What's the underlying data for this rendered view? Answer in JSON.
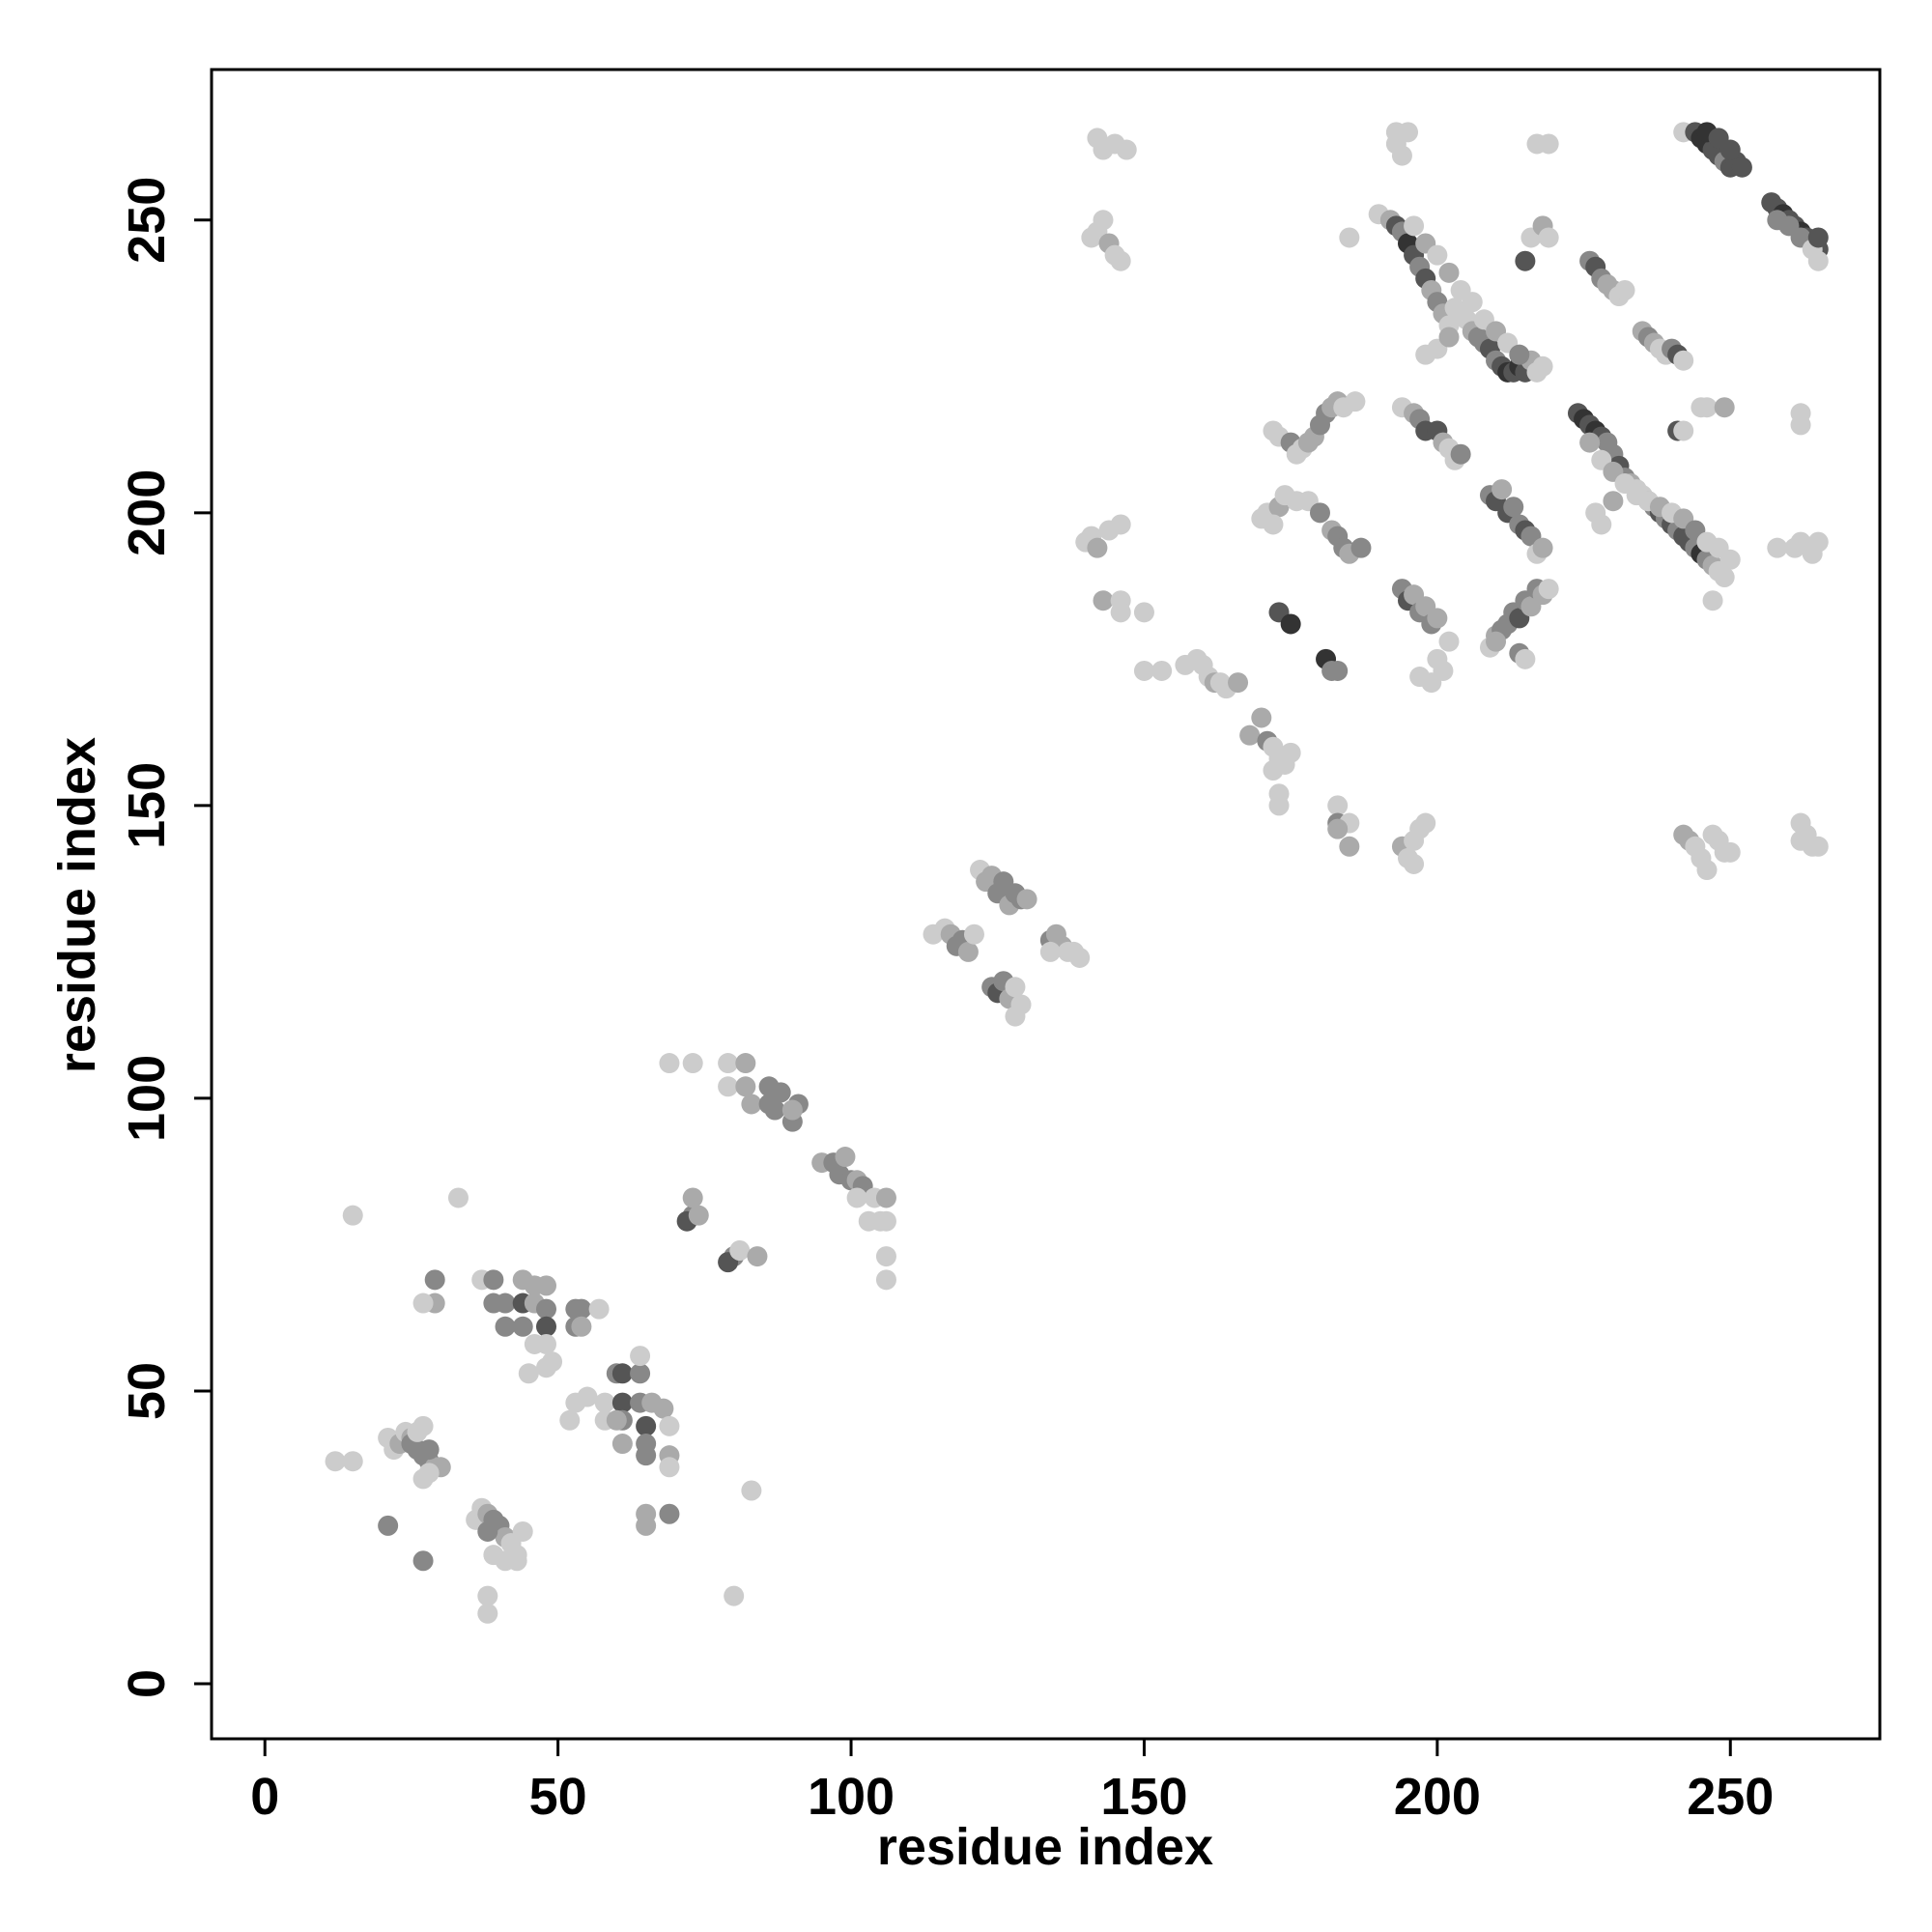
{
  "chart_data": {
    "type": "scatter",
    "xlabel": "residue index",
    "ylabel": "residue index",
    "xlim": [
      -9.1,
      275.5
    ],
    "ylim": [
      -9.4,
      275.7
    ],
    "xticks": [
      0,
      50,
      100,
      150,
      200,
      250
    ],
    "yticks": [
      0,
      50,
      100,
      150,
      200,
      250
    ],
    "x": [
      12,
      15,
      15,
      33,
      21,
      27,
      21,
      22,
      23,
      24,
      25,
      26,
      27,
      28,
      29,
      30,
      28,
      27,
      25,
      26,
      27,
      28,
      36,
      37,
      38,
      39,
      40,
      41,
      42,
      43,
      44,
      39,
      41,
      43,
      38,
      38,
      38,
      37,
      39,
      39,
      41,
      41,
      44,
      44,
      44,
      46,
      46,
      48,
      48,
      48,
      46,
      48,
      45,
      48,
      49,
      53,
      53,
      54,
      54,
      57,
      29,
      29,
      27,
      52,
      53,
      55,
      58,
      60,
      61,
      61,
      61,
      61,
      64,
      64,
      64,
      65,
      65,
      65,
      66,
      68,
      69,
      69,
      69,
      69,
      65,
      65,
      58,
      60,
      83,
      80,
      69,
      73,
      79,
      79,
      82,
      82,
      83,
      86,
      86,
      87,
      88,
      90,
      91,
      90,
      73,
      72,
      74,
      73,
      80,
      79,
      81,
      84,
      95,
      97,
      98,
      99,
      100,
      101,
      102,
      101,
      103,
      104,
      106,
      106,
      105,
      106,
      106,
      114,
      116,
      117,
      118,
      119,
      120,
      121,
      122,
      123,
      124,
      125,
      126,
      127,
      128,
      129,
      130,
      124,
      125,
      126,
      127,
      128,
      129,
      128,
      134,
      135,
      136,
      137,
      138,
      139,
      134,
      141,
      142,
      143,
      144,
      145,
      146,
      142,
      143,
      145,
      147,
      140,
      141,
      142,
      144,
      146,
      143,
      146,
      146,
      150,
      150,
      153,
      157,
      159,
      160,
      161,
      162,
      163,
      164,
      166,
      168,
      170,
      171,
      172,
      173,
      174,
      175,
      173,
      173,
      172,
      170,
      171,
      173,
      174,
      176,
      178,
      172,
      172,
      173,
      175,
      176,
      177,
      178,
      179,
      180,
      181,
      182,
      183,
      184,
      186,
      173,
      175,
      181,
      182,
      183,
      180,
      182,
      183,
      184,
      185,
      187,
      183,
      183,
      185,
      185,
      183,
      185,
      190,
      192,
      193,
      194,
      195,
      196,
      197,
      198,
      199,
      200,
      201,
      202,
      203,
      204,
      205,
      206,
      207,
      208,
      209,
      210,
      211,
      212,
      213,
      214,
      215,
      216,
      217,
      218,
      196,
      198,
      200,
      202,
      204,
      206,
      208,
      210,
      212,
      214,
      193,
      193,
      195,
      194,
      217,
      219,
      198,
      200,
      202,
      194,
      196,
      197,
      198,
      200,
      201,
      202,
      203,
      204,
      194,
      195,
      196,
      197,
      198,
      199,
      200,
      197,
      199,
      200,
      201,
      202,
      194,
      195,
      196,
      197,
      198,
      196,
      209,
      210,
      211,
      212,
      213,
      214,
      215,
      216,
      217,
      218,
      209,
      210,
      211,
      212,
      213,
      214,
      215,
      216,
      217,
      218,
      219,
      214,
      215,
      210,
      215,
      216,
      218,
      219,
      224,
      225,
      226,
      227,
      228,
      229,
      230,
      231,
      232,
      233,
      234,
      235,
      236,
      237,
      238,
      239,
      240,
      241,
      242,
      243,
      244,
      245,
      246,
      247,
      248,
      249,
      226,
      228,
      230,
      232,
      234,
      236,
      238,
      240,
      242,
      244,
      246,
      248,
      250,
      227,
      228,
      230,
      226,
      227,
      228,
      229,
      230,
      231,
      232,
      235,
      236,
      237,
      238,
      239,
      240,
      241,
      242,
      241,
      242,
      245,
      246,
      249,
      247,
      242,
      244,
      245,
      246,
      247,
      248,
      249,
      250,
      251,
      252,
      246,
      248,
      250,
      257,
      258,
      259,
      260,
      261,
      262,
      263,
      264,
      265,
      258,
      260,
      262,
      264,
      265,
      265,
      242,
      243,
      244,
      245,
      246,
      247,
      248,
      249,
      250,
      258,
      261,
      262,
      264,
      265,
      262,
      262,
      262,
      263,
      264,
      265,
      262
    ],
    "values": [
      38,
      38,
      80,
      83,
      27,
      21,
      42,
      40,
      41,
      43,
      42,
      40,
      39,
      38,
      37,
      37,
      36,
      35,
      41,
      43,
      44,
      40,
      28,
      30,
      29,
      28,
      27,
      25,
      24,
      22,
      26,
      22,
      21,
      21,
      26,
      15,
      12,
      69,
      69,
      65,
      65,
      61,
      69,
      65,
      61,
      68,
      65,
      68,
      64,
      61,
      58,
      58,
      53,
      54,
      55,
      64,
      61,
      64,
      61,
      64,
      69,
      65,
      65,
      45,
      48,
      49,
      48,
      53,
      53,
      48,
      45,
      41,
      53,
      56,
      48,
      44,
      41,
      39,
      48,
      47,
      44,
      39,
      37,
      29,
      29,
      27,
      45,
      45,
      33,
      15,
      106,
      106,
      106,
      102,
      102,
      106,
      99,
      102,
      99,
      98,
      101,
      96,
      99,
      98,
      80,
      79,
      80,
      83,
      73,
      72,
      74,
      73,
      89,
      89,
      87,
      90,
      86,
      86,
      85,
      83,
      79,
      83,
      83,
      79,
      79,
      73,
      69,
      128,
      129,
      128,
      126,
      127,
      125,
      128,
      139,
      137,
      138,
      135,
      137,
      133,
      135,
      134,
      134,
      119,
      118,
      120,
      117,
      119,
      116,
      114,
      127,
      128,
      126,
      125,
      125,
      124,
      125,
      247,
      248,
      250,
      246,
      244,
      243,
      264,
      262,
      263,
      262,
      195,
      196,
      194,
      197,
      198,
      185,
      185,
      183,
      183,
      173,
      173,
      174,
      175,
      174,
      172,
      171,
      171,
      170,
      171,
      162,
      165,
      161,
      160,
      158,
      157,
      159,
      152,
      150,
      156,
      199,
      200,
      201,
      203,
      202,
      202,
      198,
      214,
      213,
      212,
      210,
      211,
      212,
      213,
      215,
      217,
      218,
      219,
      218,
      219,
      183,
      181,
      175,
      173,
      173,
      200,
      197,
      196,
      194,
      193,
      194,
      150,
      147,
      147,
      143,
      146,
      247,
      251,
      250,
      249,
      248,
      246,
      244,
      242,
      240,
      238,
      236,
      234,
      232,
      235,
      234,
      233,
      231,
      230,
      229,
      228,
      226,
      225,
      224,
      224,
      225,
      224,
      226,
      224,
      225,
      249,
      246,
      244,
      241,
      238,
      236,
      233,
      231,
      229,
      227,
      263,
      265,
      265,
      261,
      263,
      263,
      227,
      228,
      230,
      218,
      217,
      216,
      214,
      214,
      212,
      211,
      209,
      210,
      187,
      185,
      186,
      183,
      184,
      181,
      182,
      172,
      171,
      175,
      173,
      178,
      143,
      141,
      144,
      146,
      147,
      140,
      203,
      202,
      204,
      200,
      201,
      198,
      197,
      196,
      193,
      194,
      177,
      179,
      180,
      181,
      183,
      182,
      185,
      184,
      187,
      186,
      187,
      176,
      175,
      178,
      243,
      247,
      249,
      247,
      217,
      216,
      215,
      214,
      213,
      212,
      210,
      208,
      206,
      205,
      204,
      203,
      202,
      201,
      200,
      199,
      198,
      197,
      196,
      195,
      194,
      193,
      192,
      191,
      190,
      189,
      212,
      209,
      207,
      205,
      203,
      202,
      201,
      200,
      199,
      197,
      195,
      194,
      192,
      200,
      198,
      202,
      243,
      242,
      240,
      239,
      238,
      237,
      238,
      231,
      230,
      229,
      228,
      227,
      228,
      227,
      226,
      214,
      214,
      218,
      218,
      218,
      185,
      265,
      265,
      264,
      263,
      262,
      261,
      260,
      259,
      260,
      259,
      265,
      264,
      262,
      253,
      252,
      251,
      250,
      249,
      248,
      247,
      246,
      245,
      250,
      249,
      247,
      245,
      243,
      247,
      145,
      144,
      143,
      141,
      139,
      145,
      144,
      142,
      142,
      194,
      194,
      195,
      193,
      195,
      217,
      215,
      147,
      145,
      143,
      143,
      144
    ],
    "colors": [
      "#ccc",
      "#ccc",
      "#ccc",
      "#ccc",
      "#888",
      "#888",
      "#ccc",
      "#ccc",
      "#aaa",
      "#ccc",
      "#aaa",
      "#888",
      "#888",
      "#888",
      "#aaa",
      "#aaa",
      "#ccc",
      "#ccc",
      "#888",
      "#ccc",
      "#ccc",
      "#888",
      "#ccc",
      "#ccc",
      "#aaa",
      "#888",
      "#888",
      "#aaa",
      "#ccc",
      "#ccc",
      "#ccc",
      "#ccc",
      "#ccc",
      "#ccc",
      "#888",
      "#ccc",
      "#ccc",
      "#ccc",
      "#888",
      "#888",
      "#888",
      "#888",
      "#aaa",
      "#555",
      "#888",
      "#aaa",
      "#aaa",
      "#aaa",
      "#888",
      "#555",
      "#ccc",
      "#ccc",
      "#ccc",
      "#ccc",
      "#ccc",
      "#888",
      "#888",
      "#888",
      "#aaa",
      "#ccc",
      "#888",
      "#aaa",
      "#ccc",
      "#ccc",
      "#ccc",
      "#ccc",
      "#ccc",
      "#888",
      "#555",
      "#555",
      "#888",
      "#aaa",
      "#888",
      "#ccc",
      "#888",
      "#555",
      "#888",
      "#888",
      "#aaa",
      "#aaa",
      "#ccc",
      "#aaa",
      "#ccc",
      "#888",
      "#aaa",
      "#aaa",
      "#ccc",
      "#aaa",
      "#ccc",
      "#ccc",
      "#ccc",
      "#ccc",
      "#ccc",
      "#ccc",
      "#aaa",
      "#aaa",
      "#aaa",
      "#888",
      "#888",
      "#888",
      "#888",
      "#888",
      "#888",
      "#aaa",
      "#888",
      "#555",
      "#aaa",
      "#aaa",
      "#888",
      "#555",
      "#ccc",
      "#aaa",
      "#aaa",
      "#888",
      "#888",
      "#aaa",
      "#888",
      "#aaa",
      "#888",
      "#ccc",
      "#ccc",
      "#ccc",
      "#aaa",
      "#ccc",
      "#ccc",
      "#ccc",
      "#ccc",
      "#ccc",
      "#ccc",
      "#aaa",
      "#888",
      "#888",
      "#aaa",
      "#ccc",
      "#ccc",
      "#aaa",
      "#aaa",
      "#888",
      "#888",
      "#aaa",
      "#888",
      "#888",
      "#aaa",
      "#888",
      "#555",
      "#888",
      "#aaa",
      "#ccc",
      "#ccc",
      "#ccc",
      "#888",
      "#aaa",
      "#aaa",
      "#ccc",
      "#ccc",
      "#ccc",
      "#ccc",
      "#ccc",
      "#ccc",
      "#ccc",
      "#aaa",
      "#ccc",
      "#ccc",
      "#ccc",
      "#ccc",
      "#ccc",
      "#ccc",
      "#ccc",
      "#ccc",
      "#aaa",
      "#ccc",
      "#ccc",
      "#aaa",
      "#ccc",
      "#ccc",
      "#ccc",
      "#ccc",
      "#ccc",
      "#ccc",
      "#ccc",
      "#ccc",
      "#ccc",
      "#aaa",
      "#ccc",
      "#ccc",
      "#aaa",
      "#aaa",
      "#aaa",
      "#888",
      "#ccc",
      "#ccc",
      "#ccc",
      "#ccc",
      "#ccc",
      "#ccc",
      "#ccc",
      "#ccc",
      "#ccc",
      "#aaa",
      "#ccc",
      "#ccc",
      "#ccc",
      "#ccc",
      "#ccc",
      "#ccc",
      "#888",
      "#ccc",
      "#ccc",
      "#aaa",
      "#aaa",
      "#888",
      "#888",
      "#aaa",
      "#aaa",
      "#ccc",
      "#ccc",
      "#555",
      "#333",
      "#333",
      "#888",
      "#888",
      "#888",
      "#aaa",
      "#888",
      "#888",
      "#aaa",
      "#888",
      "#ccc",
      "#888",
      "#ccc",
      "#aaa",
      "#aaa",
      "#ccc",
      "#ccc",
      "#aaa",
      "#555",
      "#888",
      "#333",
      "#555",
      "#888",
      "#555",
      "#aaa",
      "#888",
      "#aaa",
      "#ccc",
      "#ccc",
      "#ccc",
      "#ccc",
      "#aaa",
      "#888",
      "#888",
      "#555",
      "#888",
      "#555",
      "#333",
      "#555",
      "#333",
      "#555",
      "#aaa",
      "#ccc",
      "#ccc",
      "#ccc",
      "#aaa",
      "#ccc",
      "#aaa",
      "#ccc",
      "#ccc",
      "#ccc",
      "#aaa",
      "#ccc",
      "#888",
      "#ccc",
      "#ccc",
      "#ccc",
      "#ccc",
      "#ccc",
      "#ccc",
      "#ccc",
      "#ccc",
      "#aaa",
      "#ccc",
      "#aaa",
      "#888",
      "#555",
      "#555",
      "#aaa",
      "#ccc",
      "#ccc",
      "#888",
      "#888",
      "#555",
      "#aaa",
      "#888",
      "#aaa",
      "#888",
      "#aaa",
      "#ccc",
      "#ccc",
      "#ccc",
      "#ccc",
      "#ccc",
      "#aaa",
      "#ccc",
      "#ccc",
      "#ccc",
      "#ccc",
      "#ccc",
      "#888",
      "#555",
      "#aaa",
      "#555",
      "#888",
      "#888",
      "#555",
      "#888",
      "#ccc",
      "#aaa",
      "#ccc",
      "#aaa",
      "#888",
      "#888",
      "#888",
      "#555",
      "#888",
      "#aaa",
      "#888",
      "#aaa",
      "#ccc",
      "#888",
      "#ccc",
      "#aaa",
      "#555",
      "#ccc",
      "#aaa",
      "#ccc",
      "#555",
      "#333",
      "#555",
      "#333",
      "#555",
      "#888",
      "#888",
      "#555",
      "#888",
      "#aaa",
      "#ccc",
      "#ccc",
      "#aaa",
      "#888",
      "#555",
      "#888",
      "#555",
      "#888",
      "#555",
      "#555",
      "#888",
      "#333",
      "#888",
      "#aaa",
      "#ccc",
      "#ccc",
      "#aaa",
      "#ccc",
      "#aaa",
      "#ccc",
      "#ccc",
      "#ccc",
      "#aaa",
      "#ccc",
      "#aaa",
      "#888",
      "#ccc",
      "#ccc",
      "#ccc",
      "#ccc",
      "#ccc",
      "#aaa",
      "#888",
      "#555",
      "#888",
      "#aaa",
      "#aaa",
      "#ccc",
      "#ccc",
      "#aaa",
      "#888",
      "#aaa",
      "#ccc",
      "#ccc",
      "#888",
      "#555",
      "#ccc",
      "#555",
      "#ccc",
      "#ccc",
      "#ccc",
      "#aaa",
      "#ccc",
      "#ccc",
      "#555",
      "#333",
      "#333",
      "#555",
      "#555",
      "#888",
      "#555",
      "#555",
      "#555",
      "#333",
      "#555",
      "#555",
      "#555",
      "#555",
      "#333",
      "#555",
      "#555",
      "#333",
      "#555",
      "#888",
      "#555",
      "#888",
      "#888",
      "#888",
      "#ccc",
      "#ccc",
      "#555",
      "#aaa",
      "#aaa",
      "#ccc",
      "#ccc",
      "#ccc",
      "#ccc",
      "#ccc",
      "#ccc",
      "#ccc",
      "#ccc",
      "#ccc",
      "#ccc",
      "#ccc",
      "#ccc",
      "#ccc",
      "#ccc",
      "#ccc",
      "#ccc",
      "#ccc",
      "#ccc",
      "#ccc"
    ]
  }
}
